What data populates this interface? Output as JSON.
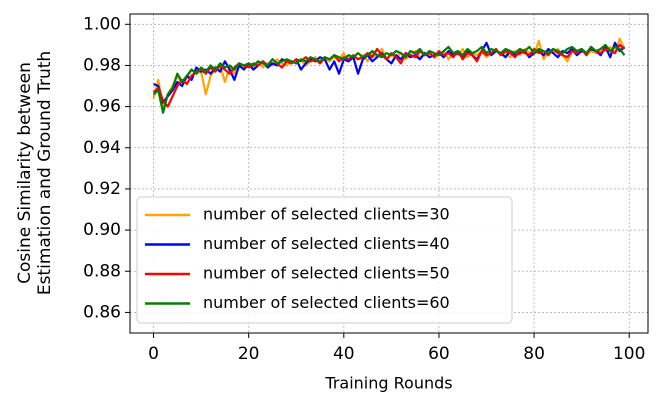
{
  "chart_data": {
    "type": "line",
    "xlabel": "Training Rounds",
    "ylabel": [
      "Cosine Similarity between",
      "Estimation and Ground Truth"
    ],
    "x": [
      0,
      1,
      2,
      3,
      4,
      5,
      6,
      7,
      8,
      9,
      10,
      11,
      12,
      13,
      14,
      15,
      16,
      17,
      18,
      19,
      20,
      21,
      22,
      23,
      24,
      25,
      26,
      27,
      28,
      29,
      30,
      31,
      32,
      33,
      34,
      35,
      36,
      37,
      38,
      39,
      40,
      41,
      42,
      43,
      44,
      45,
      46,
      47,
      48,
      49,
      50,
      51,
      52,
      53,
      54,
      55,
      56,
      57,
      58,
      59,
      60,
      61,
      62,
      63,
      64,
      65,
      66,
      67,
      68,
      69,
      70,
      71,
      72,
      73,
      74,
      75,
      76,
      77,
      78,
      79,
      80,
      81,
      82,
      83,
      84,
      85,
      86,
      87,
      88,
      89,
      90,
      91,
      92,
      93,
      94,
      95,
      96,
      97,
      98,
      99
    ],
    "xlim": [
      -4.95,
      103.95
    ],
    "xticks": [
      0,
      20,
      40,
      60,
      80,
      100
    ],
    "ylim": [
      0.85,
      1.005
    ],
    "yticks": [
      0.86,
      0.88,
      {
        "value": 0.9,
        "label": "0.90"
      },
      0.92,
      0.94,
      0.96,
      0.98,
      {
        "value": 1,
        "label": "1.00"
      }
    ],
    "grid": true,
    "legend": "lower left",
    "series": [
      {
        "name": "number of selected clients=30",
        "color": "#ffa500",
        "values": [
          0.964,
          0.973,
          0.96,
          0.966,
          0.97,
          0.975,
          0.971,
          0.974,
          0.978,
          0.976,
          0.977,
          0.966,
          0.975,
          0.978,
          0.98,
          0.972,
          0.979,
          0.976,
          0.981,
          0.979,
          0.98,
          0.978,
          0.982,
          0.979,
          0.981,
          0.98,
          0.983,
          0.981,
          0.98,
          0.982,
          0.981,
          0.983,
          0.98,
          0.982,
          0.984,
          0.981,
          0.983,
          0.982,
          0.984,
          0.983,
          0.986,
          0.982,
          0.984,
          0.983,
          0.985,
          0.982,
          0.986,
          0.984,
          0.988,
          0.983,
          0.985,
          0.984,
          0.986,
          0.983,
          0.985,
          0.987,
          0.984,
          0.985,
          0.986,
          0.984,
          0.985,
          0.987,
          0.983,
          0.986,
          0.985,
          0.988,
          0.984,
          0.986,
          0.985,
          0.987,
          0.984,
          0.986,
          0.987,
          0.985,
          0.986,
          0.984,
          0.987,
          0.985,
          0.988,
          0.986,
          0.985,
          0.992,
          0.983,
          0.987,
          0.986,
          0.988,
          0.985,
          0.982,
          0.987,
          0.986,
          0.988,
          0.985,
          0.987,
          0.986,
          0.988,
          0.987,
          0.989,
          0.986,
          0.993,
          0.988
        ]
      },
      {
        "name": "number of selected clients=40",
        "color": "#0000ff",
        "values": [
          0.971,
          0.97,
          0.962,
          0.965,
          0.968,
          0.972,
          0.97,
          0.975,
          0.973,
          0.979,
          0.977,
          0.978,
          0.976,
          0.979,
          0.977,
          0.982,
          0.978,
          0.973,
          0.98,
          0.978,
          0.981,
          0.978,
          0.98,
          0.982,
          0.979,
          0.981,
          0.98,
          0.983,
          0.982,
          0.981,
          0.983,
          0.978,
          0.981,
          0.983,
          0.982,
          0.984,
          0.983,
          0.978,
          0.982,
          0.976,
          0.983,
          0.982,
          0.984,
          0.976,
          0.983,
          0.985,
          0.982,
          0.984,
          0.986,
          0.983,
          0.981,
          0.985,
          0.983,
          0.986,
          0.984,
          0.985,
          0.983,
          0.986,
          0.984,
          0.985,
          0.986,
          0.984,
          0.987,
          0.985,
          0.986,
          0.984,
          0.987,
          0.985,
          0.983,
          0.987,
          0.991,
          0.985,
          0.987,
          0.986,
          0.984,
          0.987,
          0.985,
          0.986,
          0.987,
          0.984,
          0.986,
          0.987,
          0.985,
          0.988,
          0.986,
          0.984,
          0.987,
          0.986,
          0.988,
          0.985,
          0.987,
          0.986,
          0.988,
          0.987,
          0.985,
          0.989,
          0.984,
          0.991,
          0.987,
          0.989
        ]
      },
      {
        "name": "number of selected clients=50",
        "color": "#ff0000",
        "values": [
          0.967,
          0.969,
          0.963,
          0.96,
          0.965,
          0.97,
          0.973,
          0.971,
          0.975,
          0.977,
          0.978,
          0.976,
          0.979,
          0.977,
          0.98,
          0.978,
          0.976,
          0.979,
          0.981,
          0.98,
          0.979,
          0.981,
          0.98,
          0.982,
          0.98,
          0.983,
          0.981,
          0.979,
          0.982,
          0.981,
          0.983,
          0.982,
          0.984,
          0.982,
          0.983,
          0.981,
          0.984,
          0.983,
          0.985,
          0.982,
          0.984,
          0.983,
          0.985,
          0.983,
          0.984,
          0.986,
          0.984,
          0.988,
          0.985,
          0.983,
          0.986,
          0.984,
          0.981,
          0.986,
          0.985,
          0.984,
          0.987,
          0.985,
          0.986,
          0.984,
          0.987,
          0.985,
          0.986,
          0.984,
          0.987,
          0.983,
          0.986,
          0.985,
          0.982,
          0.987,
          0.985,
          0.986,
          0.988,
          0.985,
          0.987,
          0.986,
          0.984,
          0.987,
          0.986,
          0.985,
          0.988,
          0.986,
          0.987,
          0.985,
          0.988,
          0.986,
          0.985,
          0.984,
          0.987,
          0.986,
          0.988,
          0.985,
          0.989,
          0.987,
          0.986,
          0.988,
          0.987,
          0.986,
          0.99,
          0.988
        ]
      },
      {
        "name": "number of selected clients=60",
        "color": "#008000",
        "values": [
          0.966,
          0.968,
          0.957,
          0.966,
          0.969,
          0.976,
          0.972,
          0.975,
          0.978,
          0.976,
          0.979,
          0.977,
          0.98,
          0.978,
          0.981,
          0.979,
          0.98,
          0.978,
          0.981,
          0.98,
          0.981,
          0.98,
          0.982,
          0.981,
          0.98,
          0.983,
          0.981,
          0.982,
          0.983,
          0.982,
          0.981,
          0.983,
          0.982,
          0.984,
          0.983,
          0.982,
          0.984,
          0.983,
          0.985,
          0.984,
          0.983,
          0.985,
          0.984,
          0.986,
          0.984,
          0.985,
          0.987,
          0.985,
          0.984,
          0.986,
          0.985,
          0.987,
          0.986,
          0.984,
          0.987,
          0.986,
          0.988,
          0.985,
          0.987,
          0.986,
          0.985,
          0.987,
          0.989,
          0.986,
          0.987,
          0.985,
          0.988,
          0.986,
          0.987,
          0.989,
          0.986,
          0.988,
          0.987,
          0.986,
          0.988,
          0.987,
          0.986,
          0.988,
          0.987,
          0.989,
          0.986,
          0.988,
          0.987,
          0.986,
          0.988,
          0.987,
          0.986,
          0.988,
          0.989,
          0.987,
          0.988,
          0.986,
          0.989,
          0.987,
          0.988,
          0.99,
          0.987,
          0.989,
          0.988,
          0.985
        ]
      }
    ]
  }
}
